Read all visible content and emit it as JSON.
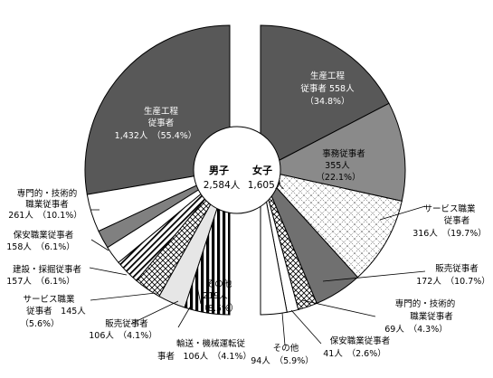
{
  "chart_data": [
    {
      "type": "pie",
      "title": "",
      "center_label": "男子",
      "center_total": "2,584人",
      "slices": [
        {
          "label": "生産工程従事者",
          "count": 1432,
          "count_text": "1,432人",
          "pct": 55.4,
          "pct_text": "（55.4%）",
          "fill": "#585858"
        },
        {
          "label": "その他",
          "count": 219,
          "count_text": "219人",
          "pct": 8.5,
          "pct_text": "（8.5%）",
          "fill": "#ffffff"
        },
        {
          "label": "輸送・機械運転従事者",
          "count": 106,
          "count_text": "106人",
          "pct": 4.1,
          "pct_text": "（4.1%）",
          "fill": "#808080"
        },
        {
          "label": "販売従事者",
          "count": 106,
          "count_text": "106人",
          "pct": 4.1,
          "pct_text": "（4.1%）",
          "fill": "#ffffff"
        },
        {
          "label": "サービス職業従事者",
          "count": 145,
          "count_text": "145人",
          "pct": 5.6,
          "pct_text": "（5.6%）",
          "fill": "hatch"
        },
        {
          "label": "建設・採掘従事者",
          "count": 157,
          "count_text": "157人",
          "pct": 6.1,
          "pct_text": "（6.1%）",
          "fill": "diamond"
        },
        {
          "label": "保安職業従事者",
          "count": 158,
          "count_text": "158人",
          "pct": 6.1,
          "pct_text": "（6.1%）",
          "fill": "#e6e6e6"
        },
        {
          "label": "専門的・技術的職業従事者",
          "count": 261,
          "count_text": "261人",
          "pct": 10.1,
          "pct_text": "（10.1%）",
          "fill": "vlines"
        }
      ]
    },
    {
      "type": "pie",
      "title": "",
      "center_label": "女子",
      "center_total": "1,605人",
      "slices": [
        {
          "label": "生産工程従事者",
          "count": 558,
          "count_text": "558人",
          "pct": 34.8,
          "pct_text": "（34.8%）",
          "fill": "#585858"
        },
        {
          "label": "事務従事者",
          "count": 355,
          "count_text": "355人",
          "pct": 22.1,
          "pct_text": "（22.1%）",
          "fill": "#8a8a8a"
        },
        {
          "label": "サービス職業従事者",
          "count": 316,
          "count_text": "316人",
          "pct": 19.7,
          "pct_text": "（19.7%）",
          "fill": "dots"
        },
        {
          "label": "販売従事者",
          "count": 172,
          "count_text": "172人",
          "pct": 10.7,
          "pct_text": "（10.7%）",
          "fill": "#707070"
        },
        {
          "label": "専門的・技術的職業従事者",
          "count": 69,
          "count_text": "69人",
          "pct": 4.3,
          "pct_text": "（4.3%）",
          "fill": "diamond"
        },
        {
          "label": "保安職業従事者",
          "count": 41,
          "count_text": "41人",
          "pct": 2.6,
          "pct_text": "（2.6%）",
          "fill": "#ffffff"
        },
        {
          "label": "その他",
          "count": 94,
          "count_text": "94人",
          "pct": 5.9,
          "pct_text": "（5.9%）",
          "fill": "#ffffff"
        }
      ]
    }
  ],
  "labels": {
    "m_seisan": [
      "生産工程",
      "従事者",
      "1,432人　（55.4%）"
    ],
    "m_senmon": [
      "専門的・技術的",
      "職業従事者",
      "261人　（10.1%）"
    ],
    "m_hoan": [
      "保安職業従事者",
      "158人　（6.1%）"
    ],
    "m_kensetsu": [
      "建設・採掘従事者",
      "157人　（6.1%）"
    ],
    "m_service": [
      "サービス職業",
      "従事者　145人",
      "（5.6%）"
    ],
    "m_hanbai": [
      "販売従事者",
      "106人　（4.1%）"
    ],
    "m_yuso": [
      "輸送・機械運転従",
      "事者　106人　（4.1%）"
    ],
    "m_sonota": [
      "その他",
      "219人",
      "（8.5%）"
    ],
    "f_seisan": [
      "生産工程",
      "従事者 558人",
      "（34.8%）"
    ],
    "f_jimu": [
      "事務従事者",
      "355人",
      "（22.1%）"
    ],
    "f_service": [
      "サービス職業",
      "従事者",
      "316人　（19.7%）"
    ],
    "f_hanbai": [
      "販売従事者",
      "172人　（10.7%）"
    ],
    "f_senmon": [
      "専門的・技術的",
      "職業従事者",
      "69人　（4.3%）"
    ],
    "f_hoan": [
      "保安職業従事者",
      "41人　（2.6%）"
    ],
    "f_sonota": [
      "その他",
      "94人　（5.9%）"
    ]
  }
}
